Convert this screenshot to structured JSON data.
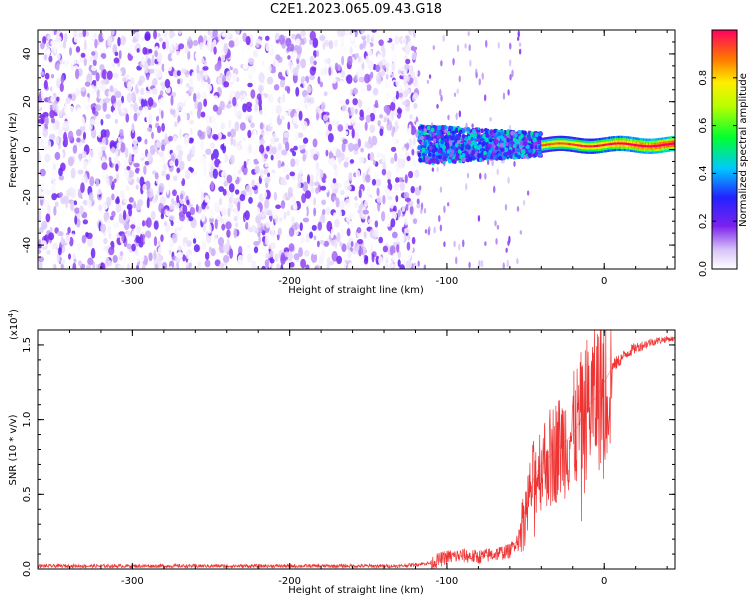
{
  "page_title": "C2E1.2023.065.09.43.G18",
  "chart_data": [
    {
      "type": "heatmap",
      "title": "C2E1.2023.065.09.43.G18",
      "xlabel": "Height of straight line (km)",
      "ylabel": "Frequency (Hz)",
      "xlim": [
        -360,
        45
      ],
      "ylim": [
        -50,
        50
      ],
      "xticks": [
        "-300",
        "-200",
        "-100",
        "0"
      ],
      "xtick_values": [
        -300,
        -200,
        -100,
        0
      ],
      "yticks": [
        "40",
        "20",
        "0",
        "-20",
        "-40"
      ],
      "ytick_values": [
        40,
        20,
        0,
        -20,
        -40
      ],
      "colorbar": {
        "label": "Normalized spectral amplitude",
        "range": [
          0,
          1
        ],
        "ticks": [
          "0.0",
          "0.2",
          "0.4",
          "0.6",
          "0.8"
        ],
        "tick_values": [
          0.0,
          0.2,
          0.4,
          0.6,
          0.8
        ],
        "colormap": "rainbow (white-violet-blue-cyan-green-yellow-red)"
      },
      "regions": [
        {
          "x": [
            -360,
            -118
          ],
          "frequency": [
            -50,
            50
          ],
          "amplitude": "0.0-0.2"
        },
        {
          "x": [
            -118,
            -40
          ],
          "frequency_center": 2,
          "frequency_spread": 8,
          "amplitude": "0.2-0.6"
        },
        {
          "x": [
            -40,
            45
          ],
          "frequency_center": 2,
          "frequency_spread": 2,
          "amplitude": "0.6-1.0"
        }
      ]
    },
    {
      "type": "line",
      "xlabel": "Height of straight line (km)",
      "ylabel": "SNR (10 * v/v)",
      "y_multiplier": "(x10",
      "y_multiplier_exp": "4",
      "y_multiplier_close": ")",
      "xlim": [
        -360,
        45
      ],
      "ylim": [
        0,
        1.6
      ],
      "xticks": [
        "-300",
        "-200",
        "-100",
        "0"
      ],
      "xtick_values": [
        -300,
        -200,
        -100,
        0
      ],
      "yticks": [
        "0.0",
        "0.5",
        "1.0",
        "1.5"
      ],
      "ytick_values": [
        0.0,
        0.5,
        1.0,
        1.5
      ],
      "series": [
        {
          "color": "#ee3333",
          "x": [
            -360,
            -300,
            -250,
            -200,
            -160,
            -130,
            -110,
            -100,
            -90,
            -80,
            -70,
            -60,
            -55,
            -50,
            -45,
            -40,
            -35,
            -30,
            -25,
            -20,
            -15,
            -10,
            -5,
            0,
            5,
            10,
            15,
            20,
            25,
            30,
            35,
            40,
            45
          ],
          "y": [
            0.02,
            0.02,
            0.02,
            0.02,
            0.02,
            0.02,
            0.04,
            0.08,
            0.09,
            0.08,
            0.1,
            0.12,
            0.2,
            0.4,
            0.6,
            0.7,
            0.75,
            0.8,
            0.85,
            0.9,
            1.0,
            1.1,
            1.15,
            1.25,
            1.35,
            1.4,
            1.45,
            1.48,
            1.5,
            1.52,
            1.53,
            1.54,
            1.54
          ]
        }
      ]
    }
  ]
}
